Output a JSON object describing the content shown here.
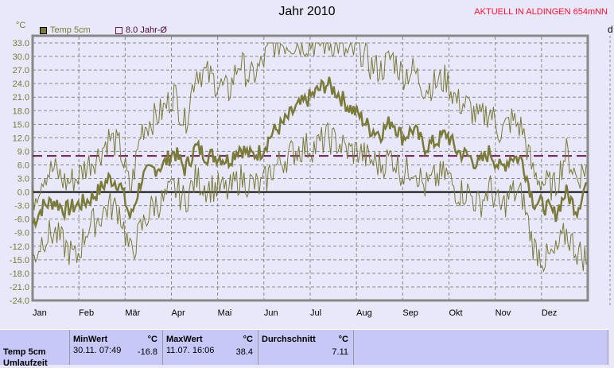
{
  "header": {
    "title": "Jahr 2010",
    "aktuell": "AKTUELL IN ALDINGEN 654mNN",
    "right_cut": "d"
  },
  "colors": {
    "series": "#7a7a3a",
    "avg": "#6a1a50",
    "zero": "#000000",
    "text_red": "#ff1030"
  },
  "chart_data": {
    "type": "line",
    "title": "Jahr 2010",
    "ylabel": "°C",
    "ylim": [
      -24,
      33
    ],
    "yticks": [
      "33.0",
      "30.0",
      "27.0",
      "24.0",
      "21.0",
      "18.0",
      "15.0",
      "12.0",
      "9.0",
      "6.0",
      "3.0",
      "0.0",
      "-3.0",
      "-6.0",
      "-9.0",
      "-12.0",
      "-15.0",
      "-18.0",
      "-21.0",
      "-24.0"
    ],
    "xticks": [
      "Jan",
      "Feb",
      "Mär",
      "Apr",
      "Mai",
      "Jun",
      "Jul",
      "Aug",
      "Sep",
      "Okt",
      "Nov",
      "Dez"
    ],
    "legend": [
      {
        "name": "Temp 5cm"
      },
      {
        "name": "8.0 Jahr-Ø"
      }
    ],
    "annual_avg": 8.0,
    "series": [
      {
        "name": "Temp 5cm mean (weekly)",
        "values": [
          -7,
          -3,
          -2,
          -4,
          -3,
          -2,
          0,
          3,
          2,
          -6,
          3,
          5,
          6,
          9,
          5,
          10,
          8,
          8,
          7,
          10,
          8,
          9,
          13,
          15,
          18,
          20,
          22,
          24,
          22,
          19,
          17,
          14,
          13,
          16,
          12,
          14,
          10,
          11,
          13,
          9,
          8,
          6,
          9,
          5,
          8,
          7,
          -2,
          -3,
          -5,
          0,
          -4,
          3
        ]
      },
      {
        "name": "Temp 5cm max (weekly)",
        "values": [
          -2,
          4,
          5,
          2,
          3,
          6,
          8,
          12,
          10,
          0,
          14,
          16,
          18,
          22,
          15,
          27,
          26,
          24,
          22,
          29,
          25,
          28,
          33,
          33,
          33,
          33,
          33,
          33,
          33,
          30,
          32,
          28,
          27,
          30,
          26,
          27,
          23,
          24,
          25,
          20,
          19,
          16,
          18,
          13,
          16,
          14,
          4,
          2,
          1,
          9,
          3,
          6
        ]
      },
      {
        "name": "Temp 5cm min (weekly)",
        "values": [
          -15,
          -10,
          -9,
          -12,
          -15,
          -8,
          -6,
          -3,
          -4,
          -14,
          -8,
          -3,
          -2,
          1,
          -2,
          3,
          1,
          1,
          0,
          3,
          2,
          1,
          5,
          7,
          9,
          10,
          10,
          12,
          11,
          9,
          9,
          7,
          6,
          8,
          4,
          6,
          1,
          3,
          4,
          0,
          0,
          -3,
          1,
          -4,
          0,
          -1,
          -12,
          -15,
          -14,
          -9,
          -13,
          -15
        ]
      }
    ]
  },
  "table": {
    "row_label": "Temp 5cm",
    "row_label2": "Umlaufzeit",
    "min": {
      "label": "MinWert",
      "unit": "°C",
      "date": "30.11.  07:49",
      "value": "-16.8"
    },
    "max": {
      "label": "MaxWert",
      "unit": "°C",
      "date": "11.07.  16:06",
      "value": "38.4"
    },
    "avg": {
      "label": "Durchschnitt",
      "unit": "°C",
      "value": "7.11"
    }
  }
}
